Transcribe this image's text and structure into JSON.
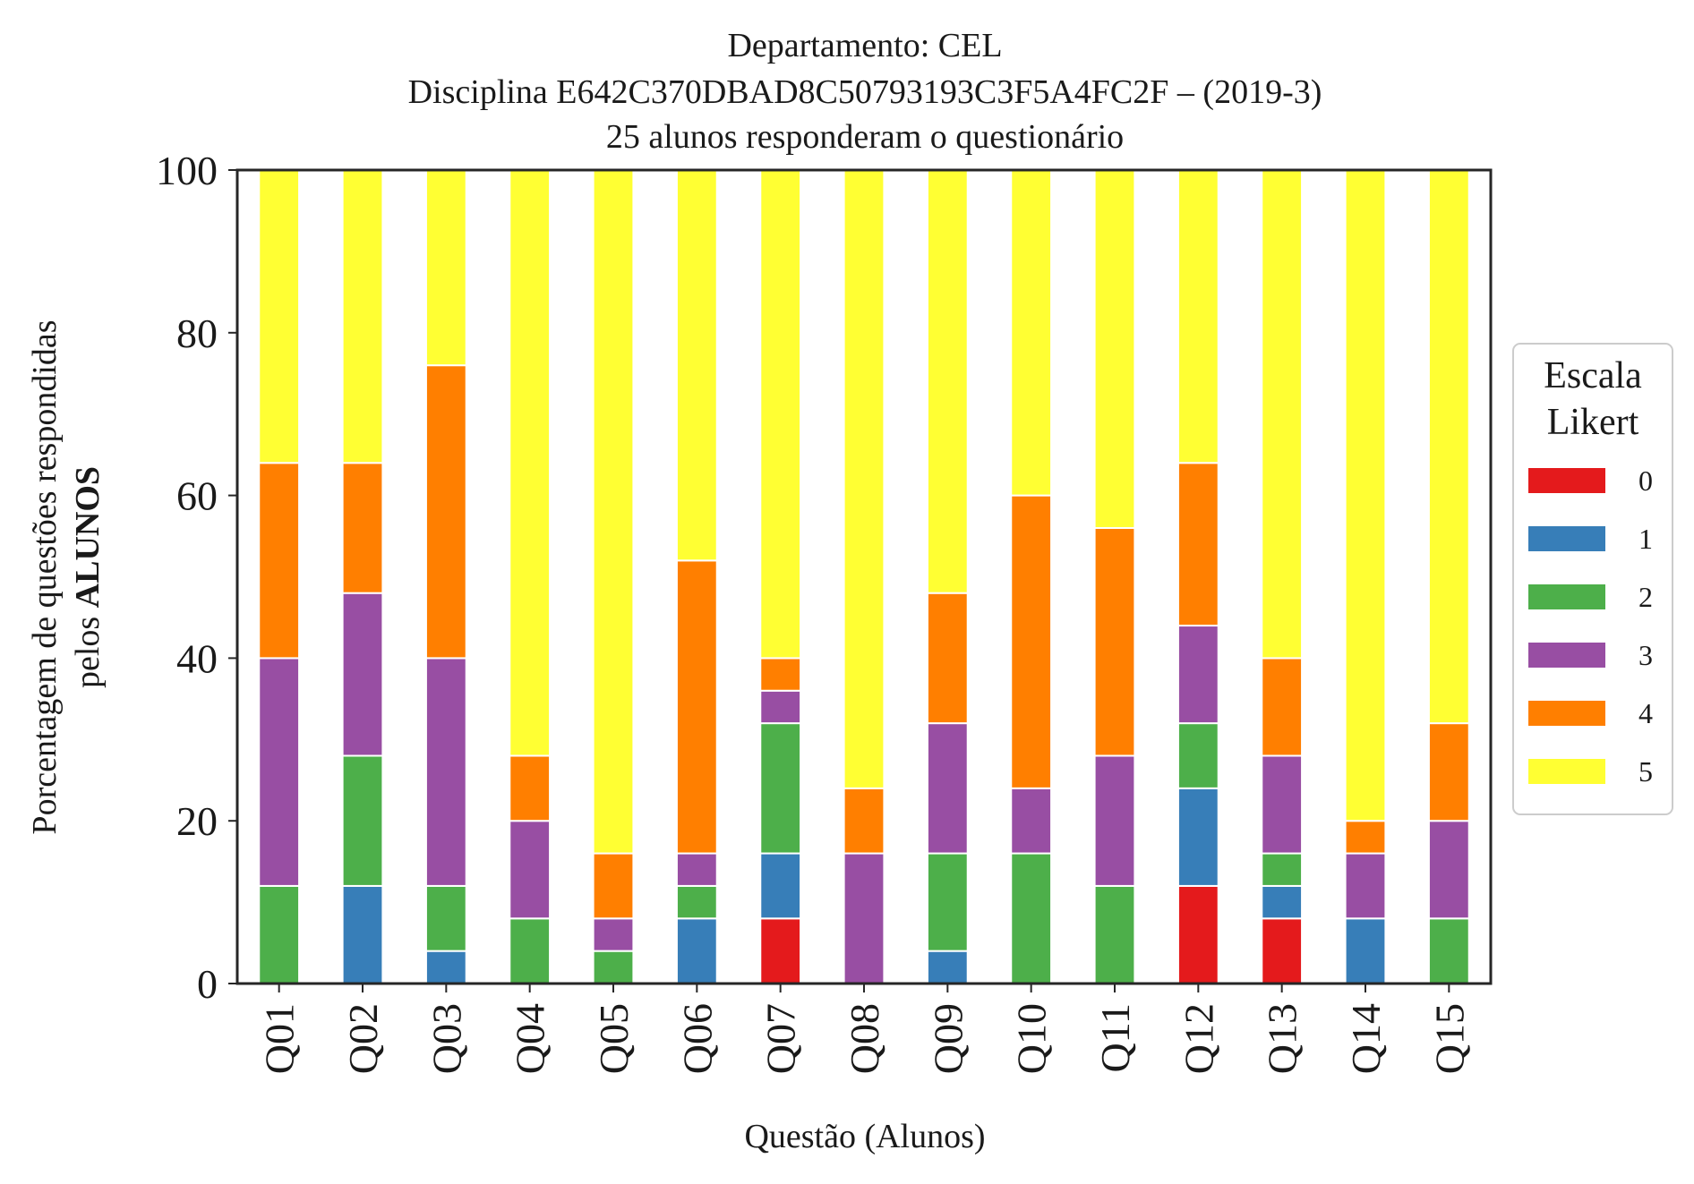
{
  "chart_data": {
    "type": "bar",
    "stacked": true,
    "title_lines": [
      "Departamento: CEL",
      "Disciplina E642C370DBAD8C50793193C3F5A4FC2F – (2019-3)",
      "25 alunos responderam o questionário"
    ],
    "xlabel": "Questão (Alunos)",
    "ylabel_line1": "Porcentagem de questões respondidas",
    "ylabel_line2_prefix": "pelos ",
    "ylabel_line2_bold": "ALUNOS",
    "ylim": [
      0,
      100
    ],
    "yticks": [
      "0",
      "20",
      "40",
      "60",
      "80",
      "100"
    ],
    "categories": [
      "Q01",
      "Q02",
      "Q03",
      "Q04",
      "Q05",
      "Q06",
      "Q07",
      "Q08",
      "Q09",
      "Q10",
      "Q11",
      "Q12",
      "Q13",
      "Q14",
      "Q15"
    ],
    "legend": {
      "title_line1": "Escala",
      "title_line2": "Likert",
      "placement": "center-right, outside"
    },
    "grid": false,
    "series": [
      {
        "name": "0",
        "color": "#e41a1c",
        "values": [
          0,
          0,
          0,
          0,
          0,
          0,
          8,
          0,
          0,
          0,
          0,
          12,
          8,
          0,
          0
        ]
      },
      {
        "name": "1",
        "color": "#377eb8",
        "values": [
          0,
          12,
          4,
          0,
          0,
          8,
          8,
          0,
          4,
          0,
          0,
          12,
          4,
          8,
          0
        ]
      },
      {
        "name": "2",
        "color": "#4daf4a",
        "values": [
          12,
          16,
          8,
          8,
          4,
          4,
          16,
          0,
          12,
          16,
          12,
          8,
          4,
          0,
          8
        ]
      },
      {
        "name": "3",
        "color": "#984ea3",
        "values": [
          28,
          20,
          28,
          12,
          4,
          4,
          4,
          16,
          16,
          8,
          16,
          12,
          12,
          8,
          12
        ]
      },
      {
        "name": "4",
        "color": "#ff7f00",
        "values": [
          24,
          16,
          36,
          8,
          8,
          36,
          4,
          8,
          16,
          36,
          28,
          20,
          12,
          4,
          12
        ]
      },
      {
        "name": "5",
        "color": "#ffff33",
        "values": [
          36,
          36,
          24,
          72,
          84,
          48,
          60,
          76,
          52,
          40,
          44,
          36,
          60,
          80,
          68
        ]
      }
    ]
  }
}
